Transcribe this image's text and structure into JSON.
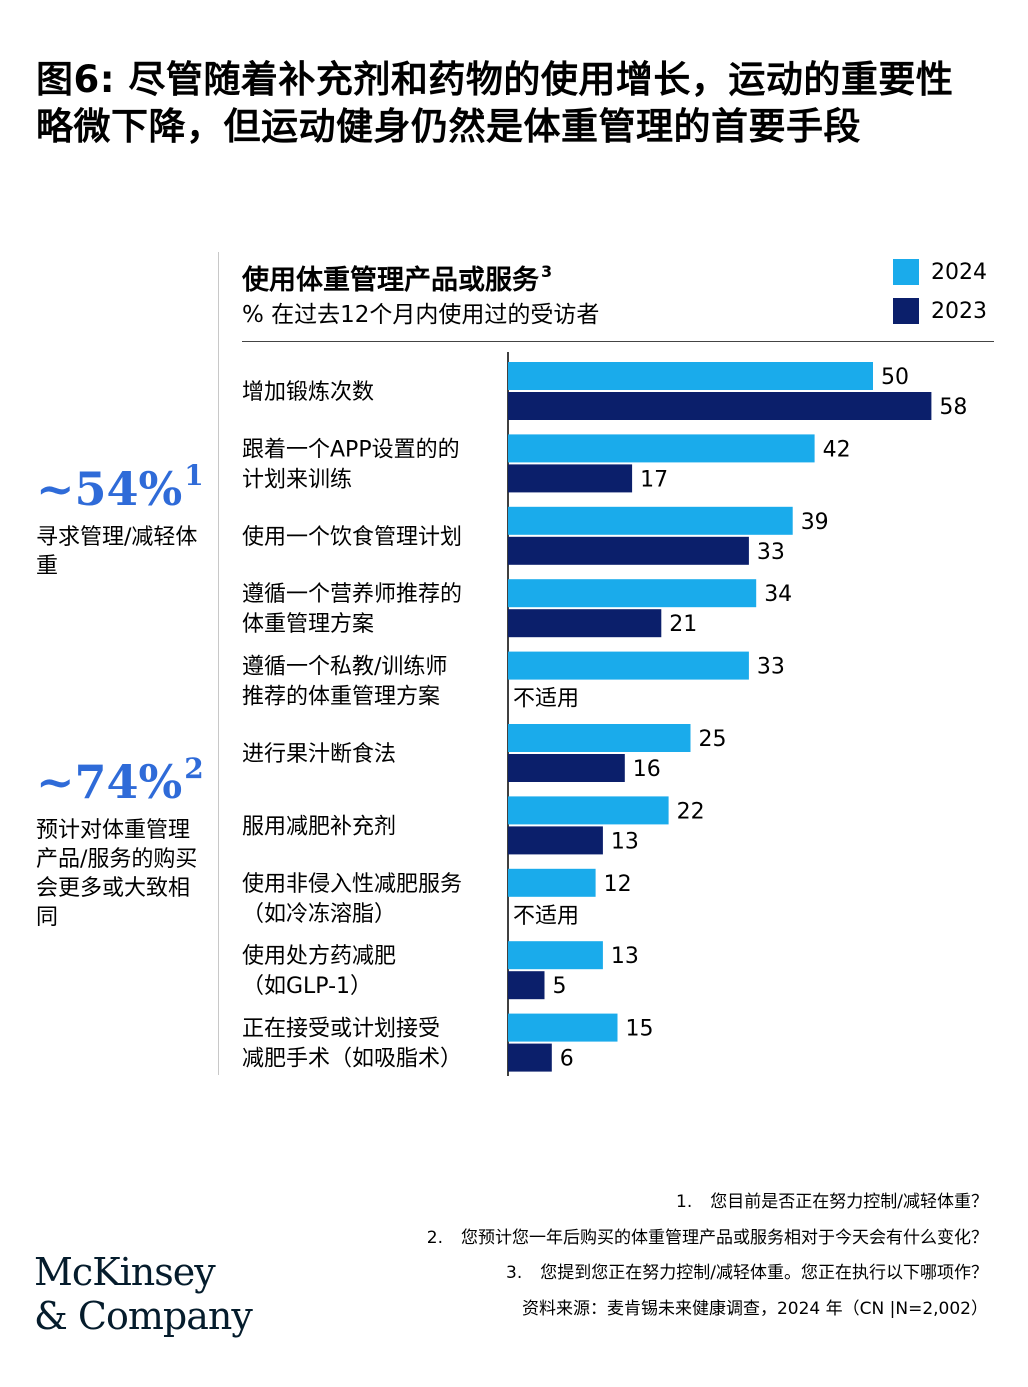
{
  "header": {
    "title": "图6: 尽管随着补充剂和药物的使用增长，运动的重要性略微下降，但运动健身仍然是体重管理的首要手段"
  },
  "stats": [
    {
      "value": "~54%",
      "sup": "1",
      "label": "寻求管理/减轻体重"
    },
    {
      "value": "~74%",
      "sup": "2",
      "label": "预计对体重管理产品/服务的购买会更多或大致相同"
    }
  ],
  "colors": {
    "series_2024": "#1aabeb",
    "series_2023": "#0b1f6b",
    "stat_accent": "#2f6bd8"
  },
  "chart_data": {
    "type": "bar",
    "orientation": "horizontal",
    "title": "使用体重管理产品或服务",
    "title_sup": "3",
    "subtitle": "% 在过去12个月内使用过的受访者",
    "legend_position": "top-right",
    "categories": [
      [
        "增加锻炼次数"
      ],
      [
        "跟着一个APP设置的的",
        "计划来训练"
      ],
      [
        "使用一个饮食管理计划"
      ],
      [
        "遵循一个营养师推荐的",
        "体重管理方案"
      ],
      [
        "遵循一个私教/训练师",
        "推荐的体重管理方案"
      ],
      [
        "进行果汁断食法"
      ],
      [
        "服用减肥补充剂"
      ],
      [
        "使用非侵入性减肥服务",
        "（如冷冻溶脂）"
      ],
      [
        "使用处方药减肥",
        "（如GLP-1）"
      ],
      [
        "正在接受或计划接受",
        "减肥手术（如吸脂术）"
      ]
    ],
    "series": [
      {
        "name": "2024",
        "values": [
          50,
          42,
          39,
          34,
          33,
          25,
          22,
          12,
          13,
          15
        ]
      },
      {
        "name": "2023",
        "values": [
          58,
          17,
          33,
          21,
          null,
          16,
          13,
          null,
          5,
          6
        ]
      }
    ],
    "na_label": "不适用",
    "xlim": [
      0,
      58
    ]
  },
  "footnotes": [
    {
      "num": "1.",
      "text": "您目前是否正在努力控制/减轻体重？"
    },
    {
      "num": "2.",
      "text": "您预计您一年后购买的体重管理产品或服务相对于今天会有什么变化？"
    },
    {
      "num": "3.",
      "text": "您提到您正在努力控制/减轻体重。您正在执行以下哪项作？"
    }
  ],
  "source": "资料来源：麦肯锡未来健康调查，2024 年（CN |N=2,002）",
  "logo": {
    "line1": "McKinsey",
    "line2": "& Company"
  }
}
